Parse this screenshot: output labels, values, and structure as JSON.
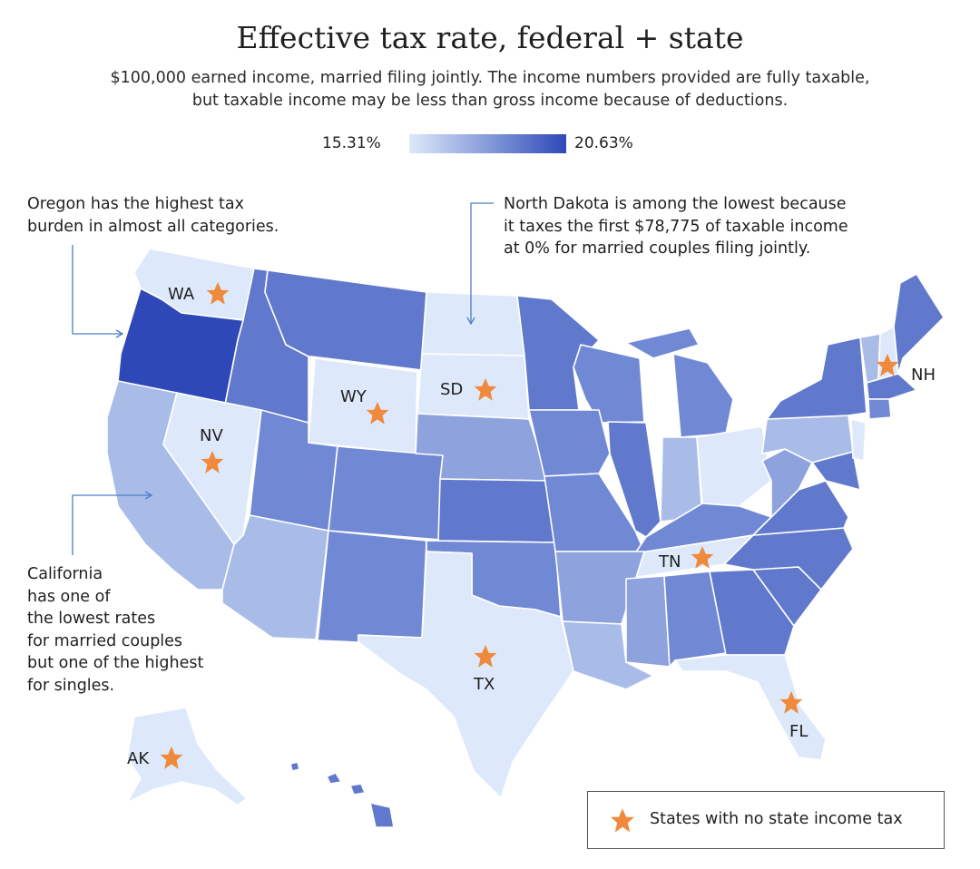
{
  "title": "Effective tax rate, federal + state",
  "subtitle_line1": "$100,000 earned income, married filing jointly. The income numbers provided are fully taxable,",
  "subtitle_line2": "but taxable income may be less than gross income because of deductions.",
  "scale": {
    "min_label": "15.31%",
    "max_label": "20.63%",
    "min_color": "#dde9fa",
    "max_color": "#2f48b8"
  },
  "notes": {
    "oregon": [
      "Oregon has the highest tax",
      "burden in almost all categories."
    ],
    "north_dakota": [
      "North Dakota is among the lowest because",
      "it taxes the first $78,775 of taxable income",
      "at 0% for married couples filing jointly."
    ],
    "california": [
      "California",
      "has one of",
      "the lowest rates",
      "for married couples",
      "but one of the highest",
      "for singles."
    ]
  },
  "state_labels": {
    "WA": "WA",
    "NV": "NV",
    "WY": "WY",
    "SD": "SD",
    "TN": "TN",
    "TX": "TX",
    "FL": "FL",
    "NH": "NH",
    "AK": "AK"
  },
  "legend": {
    "label": "States with no state income tax",
    "star_color": "#ef8a3c"
  },
  "colors": {
    "lightest": "#dde9fa",
    "light": "#a9bce8",
    "mid_light": "#8ea3de",
    "mid": "#7189d4",
    "mid_dark": "#6179cc",
    "darkest": "#2f48b8"
  }
}
